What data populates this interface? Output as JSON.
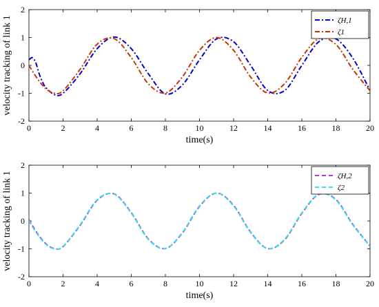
{
  "chart_data": [
    {
      "type": "line",
      "title": "",
      "xlabel": "time(s)",
      "ylabel": "velocity tracking of link 1",
      "xlim": [
        0,
        20
      ],
      "ylim": [
        -2,
        2
      ],
      "xticks": [
        "0",
        "2",
        "4",
        "6",
        "8",
        "10",
        "12",
        "14",
        "16",
        "18",
        "20"
      ],
      "yticks": [
        "-2",
        "-1",
        "0",
        "1",
        "2"
      ],
      "legend_position": "top-right",
      "series": [
        {
          "name": "ζ̇H,1",
          "color": "#0000cc",
          "style": "dash-dot",
          "x": [
            0,
            0.2,
            0.4,
            0.6,
            0.8,
            1.0,
            1.5,
            2.0,
            3.0,
            4.0,
            5.0,
            6.0,
            7.0,
            8.0,
            9.0,
            10.0,
            11.0,
            12.0,
            13.0,
            14.0,
            15.0,
            16.0,
            17.0,
            18.0,
            19.0,
            20.0
          ],
          "y": [
            0.2,
            0.28,
            0.1,
            -0.3,
            -0.6,
            -0.8,
            -1.05,
            -1.0,
            -0.3,
            0.6,
            1.02,
            0.6,
            -0.3,
            -1.02,
            -0.7,
            0.2,
            0.95,
            0.85,
            0.0,
            -0.9,
            -0.9,
            0.0,
            0.85,
            0.95,
            0.25,
            -0.9
          ]
        },
        {
          "name": "ζ1",
          "color": "#cc3300",
          "style": "dash-dot",
          "x": [
            0,
            0.5,
            1.0,
            1.5,
            2.0,
            3.0,
            4.0,
            5.0,
            6.0,
            7.0,
            8.0,
            9.0,
            10.0,
            11.0,
            12.0,
            13.0,
            14.0,
            15.0,
            16.0,
            17.0,
            18.0,
            19.0,
            20.0
          ],
          "y": [
            0.0,
            -0.48,
            -0.84,
            -1.0,
            -0.91,
            -0.14,
            0.76,
            0.96,
            0.28,
            -0.66,
            -0.99,
            -0.41,
            0.54,
            1.0,
            0.54,
            -0.42,
            -0.99,
            -0.65,
            0.29,
            0.96,
            0.75,
            -0.15,
            -0.91
          ]
        }
      ]
    },
    {
      "type": "line",
      "title": "",
      "xlabel": "time(s)",
      "ylabel": "velocity tracking of link 1",
      "xlim": [
        0,
        20
      ],
      "ylim": [
        -2,
        2
      ],
      "xticks": [
        "0",
        "2",
        "4",
        "6",
        "8",
        "10",
        "12",
        "14",
        "16",
        "18",
        "20"
      ],
      "yticks": [
        "-2",
        "-1",
        "0",
        "1",
        "2"
      ],
      "legend_position": "top-right",
      "series": [
        {
          "name": "ζ̇H,2",
          "color": "#b23bd6",
          "style": "dashed",
          "x": [
            0,
            0.5,
            1.0,
            1.5,
            2.0,
            3.0,
            4.0,
            5.0,
            6.0,
            7.0,
            8.0,
            9.0,
            10.0,
            11.0,
            12.0,
            13.0,
            14.0,
            15.0,
            16.0,
            17.0,
            18.0,
            19.0,
            20.0
          ],
          "y": [
            0.05,
            -0.45,
            -0.82,
            -0.99,
            -0.92,
            -0.16,
            0.74,
            0.97,
            0.3,
            -0.64,
            -0.99,
            -0.43,
            0.52,
            1.0,
            0.56,
            -0.4,
            -0.99,
            -0.67,
            0.27,
            0.95,
            0.77,
            -0.13,
            -0.9
          ]
        },
        {
          "name": "ζ2",
          "color": "#33e0f0",
          "style": "dashed",
          "x": [
            0,
            0.5,
            1.0,
            1.5,
            2.0,
            3.0,
            4.0,
            5.0,
            6.0,
            7.0,
            8.0,
            9.0,
            10.0,
            11.0,
            12.0,
            13.0,
            14.0,
            15.0,
            16.0,
            17.0,
            18.0,
            19.0,
            20.0
          ],
          "y": [
            0.0,
            -0.48,
            -0.84,
            -1.0,
            -0.91,
            -0.14,
            0.76,
            0.96,
            0.28,
            -0.66,
            -0.99,
            -0.41,
            0.54,
            1.0,
            0.54,
            -0.42,
            -0.99,
            -0.65,
            0.29,
            0.96,
            0.75,
            -0.15,
            -0.91
          ]
        }
      ]
    }
  ]
}
